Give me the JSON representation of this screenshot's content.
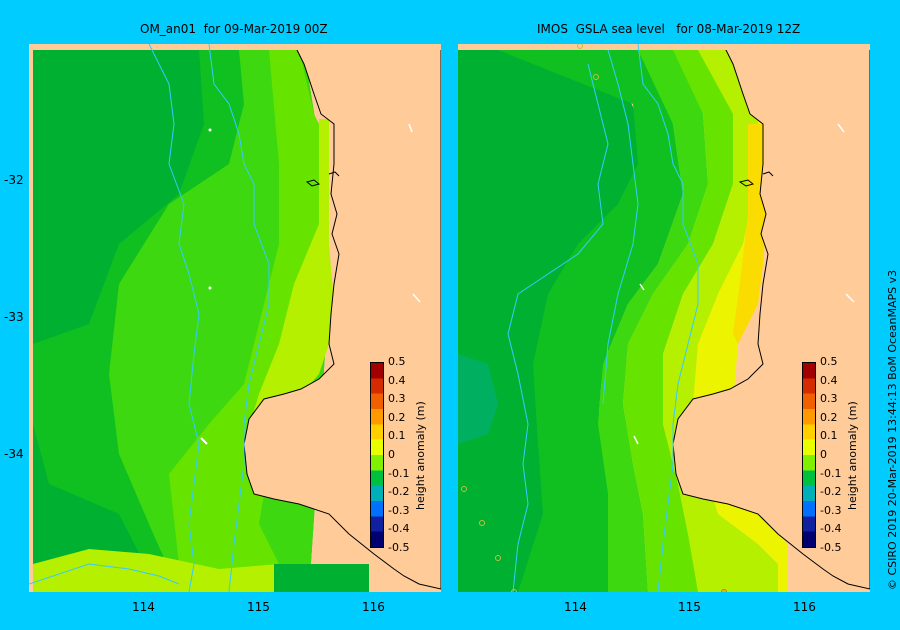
{
  "panels": [
    {
      "title": "OM_an01  for 09-Mar-2019 00Z"
    },
    {
      "title": "IMOS  GSLA sea level   for 08-Mar-2019 12Z"
    }
  ],
  "axes": {
    "lat_labels": [
      "-32",
      "-33",
      "-34"
    ],
    "lon_labels": [
      "114",
      "115",
      "116"
    ]
  },
  "colorbar": {
    "label": "height anomaly (m)",
    "ticks": [
      "0.5",
      "0.4",
      "0.3",
      "0.2",
      "0.1",
      "0",
      "-0.1",
      "-0.2",
      "-0.3",
      "-0.4",
      "-0.5"
    ],
    "colors": [
      "#a00000",
      "#d42c00",
      "#f06000",
      "#ff9a00",
      "#ffd000",
      "#e8ff00",
      "#80f000",
      "#00c040",
      "#00b0b8",
      "#0070ff",
      "#1020a0",
      "#000070"
    ]
  },
  "credit": "© CSIRO 2019   20-Mar-2019 13:44:13 BoM OceanMAPS v3",
  "colors": {
    "background": "#00ccff",
    "land": "#ffcc99",
    "river": "#33ccff",
    "green_dark": "#00b030",
    "green_mid": "#10c020",
    "green_light": "#3dd810",
    "green_lime": "#66e400",
    "yellow_green": "#b4f000",
    "yellow": "#ecf400",
    "gold": "#fadc00"
  }
}
